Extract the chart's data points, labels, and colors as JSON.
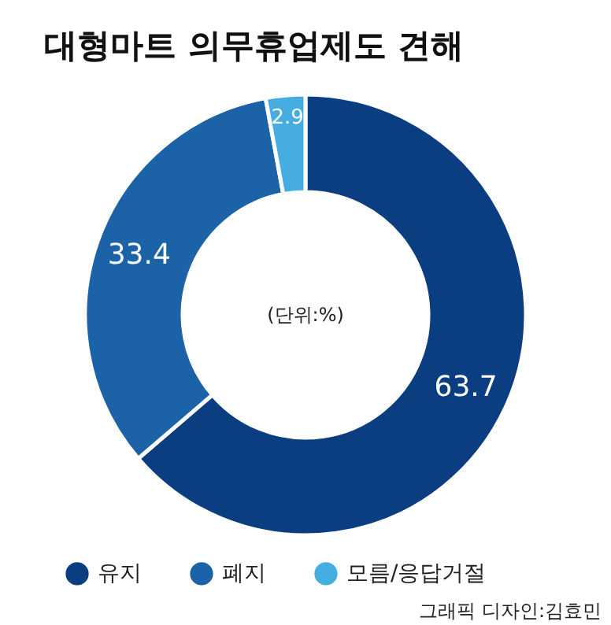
{
  "chart_data": {
    "type": "donut",
    "title": "대형마트 의무휴업제도 견해",
    "categories": [
      "유지",
      "폐지",
      "모름/응답거절"
    ],
    "values": [
      63.7,
      33.4,
      2.9
    ],
    "colors": [
      "#0b3e80",
      "#1b63a6",
      "#45ade0"
    ],
    "data_labels": true,
    "legend": "bottom",
    "annotations": [
      "(단위:%)",
      "그래픽 디자인:김효민"
    ]
  }
}
